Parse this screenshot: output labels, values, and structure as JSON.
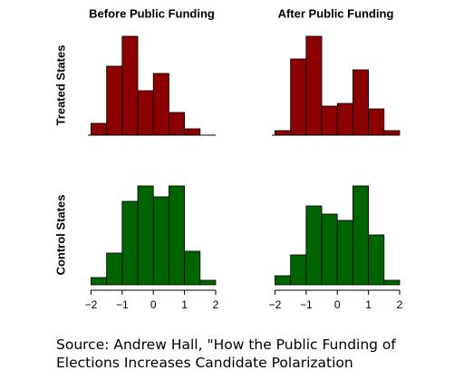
{
  "chart_data": [
    {
      "type": "histogram",
      "title": "Before Public Funding",
      "ylabel": "Treated States",
      "color": "#8b0000",
      "bins": [
        -2,
        -1.5,
        -1,
        -0.5,
        0,
        0.5,
        1,
        1.5
      ],
      "values": [
        13,
        76,
        109,
        49,
        68,
        25,
        7
      ],
      "xlim": [
        -2.1,
        2
      ],
      "ylim": [
        0,
        115
      ]
    },
    {
      "type": "histogram",
      "title": "After Public Funding",
      "color": "#8b0000",
      "bins": [
        -2,
        -1.5,
        -1,
        -0.5,
        0,
        0.5,
        1,
        1.5,
        2
      ],
      "values": [
        5,
        84,
        109,
        32,
        35,
        72,
        29,
        5
      ],
      "xlim": [
        -2.1,
        2
      ],
      "ylim": [
        0,
        115
      ]
    },
    {
      "type": "histogram",
      "ylabel": "Control States",
      "color": "#006400",
      "bins": [
        -2,
        -1.5,
        -1,
        -0.5,
        0,
        0.5,
        1,
        1.5,
        2
      ],
      "values": [
        8,
        35,
        92,
        109,
        97,
        109,
        37,
        5
      ],
      "xlim": [
        -2.1,
        2
      ],
      "ylim": [
        0,
        115
      ],
      "xticks": [
        {
          "value": -2,
          "label": "−2"
        },
        {
          "value": -1,
          "label": "−1"
        },
        0,
        1,
        2
      ]
    },
    {
      "type": "histogram",
      "color": "#006400",
      "bins": [
        -2,
        -1.5,
        -1,
        -0.5,
        0,
        0.5,
        1,
        1.5,
        2
      ],
      "values": [
        10,
        33,
        87,
        78,
        71,
        109,
        55,
        5
      ],
      "xlim": [
        -2.1,
        2
      ],
      "ylim": [
        0,
        115
      ],
      "xticks": [
        {
          "value": -2,
          "label": "−2"
        },
        {
          "value": -1,
          "label": "−1"
        },
        0,
        1,
        2
      ]
    }
  ],
  "source": "Source: Andrew Hall, \"How the Public Funding of Elections Increases Candidate Polarization"
}
